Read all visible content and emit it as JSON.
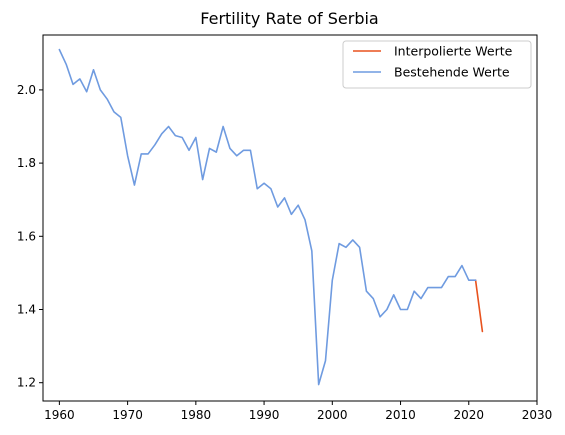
{
  "chart_data": {
    "type": "line",
    "title": "Fertility Rate of Serbia",
    "xlabel": "",
    "ylabel": "",
    "xlim": [
      1957.6,
      2030
    ],
    "ylim": [
      1.15,
      2.15
    ],
    "xticks": [
      1960,
      1970,
      1980,
      1990,
      2000,
      2010,
      2020,
      2030
    ],
    "yticks": [
      1.2,
      1.4,
      1.6,
      1.8,
      2.0
    ],
    "grid": false,
    "legend_position": "top-right",
    "series": [
      {
        "name": "Interpolierte Werte",
        "color": "#e8521e",
        "x": [
          2021,
          2022
        ],
        "values": [
          1.48,
          1.34
        ]
      },
      {
        "name": "Bestehende Werte",
        "color": "#6f9be0",
        "x": [
          1960,
          1961,
          1962,
          1963,
          1964,
          1965,
          1966,
          1967,
          1968,
          1969,
          1970,
          1971,
          1972,
          1973,
          1974,
          1975,
          1976,
          1977,
          1978,
          1979,
          1980,
          1981,
          1982,
          1983,
          1984,
          1985,
          1986,
          1987,
          1988,
          1989,
          1990,
          1991,
          1992,
          1993,
          1994,
          1995,
          1996,
          1997,
          1998,
          1999,
          2000,
          2001,
          2002,
          2003,
          2004,
          2005,
          2006,
          2007,
          2008,
          2009,
          2010,
          2011,
          2012,
          2013,
          2014,
          2015,
          2016,
          2017,
          2018,
          2019,
          2020,
          2021
        ],
        "values": [
          2.11,
          2.07,
          2.015,
          2.03,
          1.995,
          2.055,
          2.0,
          1.975,
          1.94,
          1.925,
          1.82,
          1.74,
          1.825,
          1.825,
          1.85,
          1.88,
          1.9,
          1.875,
          1.87,
          1.835,
          1.87,
          1.755,
          1.84,
          1.83,
          1.9,
          1.84,
          1.82,
          1.835,
          1.835,
          1.73,
          1.745,
          1.73,
          1.68,
          1.705,
          1.66,
          1.685,
          1.645,
          1.56,
          1.195,
          1.26,
          1.48,
          1.58,
          1.57,
          1.59,
          1.57,
          1.45,
          1.43,
          1.38,
          1.4,
          1.44,
          1.4,
          1.4,
          1.45,
          1.43,
          1.46,
          1.46,
          1.46,
          1.49,
          1.49,
          1.52,
          1.48,
          1.48
        ]
      }
    ]
  }
}
